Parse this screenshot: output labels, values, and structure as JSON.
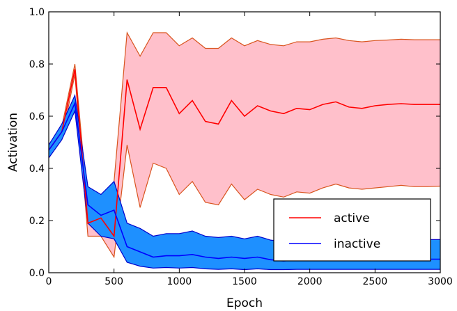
{
  "chart_data": {
    "type": "line",
    "title": "",
    "xlabel": "Epoch",
    "ylabel": "Activation",
    "xlim": [
      0,
      3000
    ],
    "ylim": [
      0.0,
      1.0
    ],
    "xticks": [
      0,
      500,
      1000,
      1500,
      2000,
      2500,
      3000
    ],
    "xtick_labels": [
      "0",
      "500",
      "1000",
      "1500",
      "2000",
      "2500",
      "3000"
    ],
    "yticks": [
      0.0,
      0.2,
      0.4,
      0.6,
      0.8,
      1.0
    ],
    "ytick_labels": [
      "0.0",
      "0.2",
      "0.4",
      "0.6",
      "0.8",
      "1.0"
    ],
    "grid": false,
    "legend_position": "lower-right",
    "x": [
      0,
      100,
      200,
      300,
      400,
      500,
      600,
      700,
      800,
      900,
      1000,
      1100,
      1200,
      1300,
      1400,
      1500,
      1600,
      1700,
      1800,
      1900,
      2000,
      2100,
      2200,
      2300,
      2400,
      2500,
      2600,
      2700,
      2800,
      2900,
      3000
    ],
    "series": [
      {
        "name": "active",
        "color": "#ff0000",
        "band_color": "#ffc0cb",
        "band_edge_color": "#d9541e",
        "mean": [
          0.47,
          0.54,
          0.78,
          0.19,
          0.21,
          0.14,
          0.74,
          0.55,
          0.71,
          0.71,
          0.61,
          0.66,
          0.58,
          0.57,
          0.66,
          0.6,
          0.64,
          0.62,
          0.61,
          0.63,
          0.625,
          0.645,
          0.655,
          0.635,
          0.63,
          0.64,
          0.645,
          0.648,
          0.645,
          0.645,
          0.645
        ],
        "upper": [
          0.48,
          0.56,
          0.8,
          0.25,
          0.24,
          0.35,
          0.92,
          0.83,
          0.92,
          0.92,
          0.87,
          0.9,
          0.86,
          0.86,
          0.9,
          0.87,
          0.89,
          0.875,
          0.87,
          0.885,
          0.885,
          0.895,
          0.9,
          0.89,
          0.885,
          0.89,
          0.892,
          0.895,
          0.893,
          0.893,
          0.893
        ],
        "lower": [
          0.45,
          0.51,
          0.76,
          0.14,
          0.14,
          0.06,
          0.49,
          0.25,
          0.42,
          0.4,
          0.3,
          0.35,
          0.27,
          0.26,
          0.34,
          0.28,
          0.32,
          0.3,
          0.29,
          0.31,
          0.305,
          0.325,
          0.34,
          0.325,
          0.32,
          0.325,
          0.33,
          0.335,
          0.33,
          0.33,
          0.332
        ]
      },
      {
        "name": "inactive",
        "color": "#0000ff",
        "band_color": "#1e90ff",
        "band_edge_color": "#0000cd",
        "mean": [
          0.47,
          0.54,
          0.65,
          0.26,
          0.22,
          0.24,
          0.1,
          0.08,
          0.06,
          0.065,
          0.065,
          0.07,
          0.06,
          0.055,
          0.06,
          0.055,
          0.06,
          0.05,
          0.045,
          0.05,
          0.05,
          0.05,
          0.05,
          0.05,
          0.05,
          0.05,
          0.05,
          0.05,
          0.052,
          0.052,
          0.052
        ],
        "upper": [
          0.49,
          0.57,
          0.68,
          0.33,
          0.3,
          0.35,
          0.19,
          0.17,
          0.14,
          0.15,
          0.15,
          0.16,
          0.14,
          0.135,
          0.14,
          0.13,
          0.14,
          0.125,
          0.12,
          0.125,
          0.125,
          0.125,
          0.125,
          0.125,
          0.125,
          0.125,
          0.125,
          0.125,
          0.127,
          0.127,
          0.127
        ],
        "lower": [
          0.44,
          0.51,
          0.62,
          0.19,
          0.14,
          0.13,
          0.04,
          0.025,
          0.018,
          0.02,
          0.018,
          0.02,
          0.015,
          0.013,
          0.015,
          0.012,
          0.015,
          0.012,
          0.012,
          0.013,
          0.013,
          0.013,
          0.013,
          0.013,
          0.013,
          0.013,
          0.013,
          0.013,
          0.013,
          0.013,
          0.013
        ]
      }
    ]
  }
}
